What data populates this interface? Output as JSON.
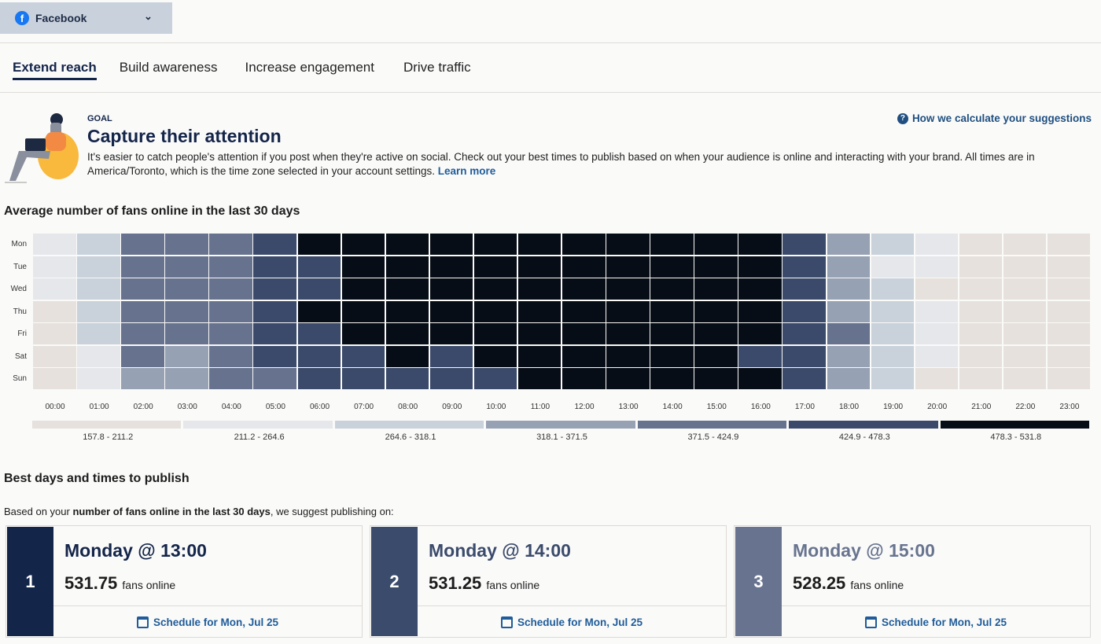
{
  "network_select": {
    "label": "Facebook",
    "icon": "facebook-icon"
  },
  "tabs": [
    {
      "label": "Extend reach",
      "active": true
    },
    {
      "label": "Build awareness"
    },
    {
      "label": "Increase engagement"
    },
    {
      "label": "Drive traffic"
    }
  ],
  "goal": {
    "eyebrow": "GOAL",
    "title": "Capture their attention",
    "description": "It's easier to catch people's attention if you post when they're active on social. Check out your best times to publish based on when your audience is online and interacting with your brand. All times are in America/Toronto, which is the time zone selected in your account settings.",
    "learn_more": "Learn more",
    "how_link": "How we calculate your suggestions"
  },
  "chart_data": {
    "type": "heatmap",
    "title": "Average number of fans online in the last 30 days",
    "rows": [
      "Mon",
      "Tue",
      "Wed",
      "Thu",
      "Fri",
      "Sat",
      "Sun"
    ],
    "columns": [
      "00:00",
      "01:00",
      "02:00",
      "03:00",
      "04:00",
      "05:00",
      "06:00",
      "07:00",
      "08:00",
      "09:00",
      "10:00",
      "11:00",
      "12:00",
      "13:00",
      "14:00",
      "15:00",
      "16:00",
      "17:00",
      "18:00",
      "19:00",
      "20:00",
      "21:00",
      "22:00",
      "23:00"
    ],
    "bucket_index": [
      [
        1,
        2,
        4,
        4,
        4,
        5,
        6,
        6,
        6,
        6,
        6,
        6,
        6,
        6,
        6,
        6,
        6,
        5,
        3,
        2,
        1,
        0,
        0,
        0
      ],
      [
        1,
        2,
        4,
        4,
        4,
        5,
        5,
        6,
        6,
        6,
        6,
        6,
        6,
        6,
        6,
        6,
        6,
        5,
        3,
        1,
        1,
        0,
        0,
        0
      ],
      [
        1,
        2,
        4,
        4,
        4,
        5,
        5,
        6,
        6,
        6,
        6,
        6,
        6,
        6,
        6,
        6,
        6,
        5,
        3,
        2,
        0,
        0,
        0,
        0
      ],
      [
        0,
        2,
        4,
        4,
        4,
        5,
        6,
        6,
        6,
        6,
        6,
        6,
        6,
        6,
        6,
        6,
        6,
        5,
        3,
        2,
        1,
        0,
        0,
        0
      ],
      [
        0,
        2,
        4,
        4,
        4,
        5,
        5,
        6,
        6,
        6,
        6,
        6,
        6,
        6,
        6,
        6,
        6,
        5,
        4,
        2,
        1,
        0,
        0,
        0
      ],
      [
        0,
        1,
        4,
        3,
        4,
        5,
        5,
        5,
        6,
        5,
        6,
        6,
        6,
        6,
        6,
        6,
        5,
        5,
        3,
        2,
        1,
        0,
        0,
        0
      ],
      [
        0,
        1,
        3,
        3,
        4,
        4,
        5,
        5,
        5,
        5,
        5,
        6,
        6,
        6,
        6,
        6,
        6,
        5,
        3,
        2,
        0,
        0,
        0,
        0
      ]
    ],
    "legend": [
      "157.8 - 211.2",
      "211.2 - 264.6",
      "264.6 - 318.1",
      "318.1 - 371.5",
      "371.5 - 424.9",
      "424.9 - 478.3",
      "478.3 - 531.8"
    ],
    "colors": [
      "#e6e1dc",
      "#e5e7eb",
      "#c9d1db",
      "#97a1b4",
      "#66728e",
      "#3b4a6a",
      "#070d16"
    ]
  },
  "best": {
    "title": "Best days and times to publish",
    "intro_pre": "Based on your ",
    "intro_bold": "number of fans online in the last 30 days",
    "intro_post": ", we suggest publishing on:",
    "cards": [
      {
        "rank": "1",
        "when": "Monday @ 13:00",
        "value": "531.75",
        "unit": "fans online",
        "schedule": "Schedule for Mon, Jul 25",
        "color": "#14254a"
      },
      {
        "rank": "2",
        "when": "Monday @ 14:00",
        "value": "531.25",
        "unit": "fans online",
        "schedule": "Schedule for Mon, Jul 25",
        "color": "#3b4b6c"
      },
      {
        "rank": "3",
        "when": "Monday @ 15:00",
        "value": "528.25",
        "unit": "fans online",
        "schedule": "Schedule for Mon, Jul 25",
        "color": "#68748f"
      }
    ]
  }
}
